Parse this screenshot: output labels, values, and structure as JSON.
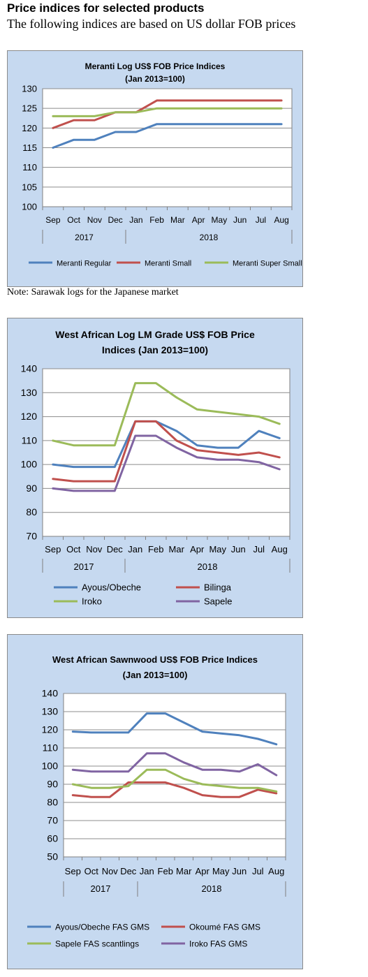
{
  "header": {
    "title": "Price indices for selected products",
    "subtitle": "The following indices are based on US dollar FOB prices"
  },
  "note": "Note: Sarawak logs for the Japanese market",
  "chart_data": [
    {
      "type": "line",
      "title_lines": [
        "Meranti Log US$ FOB Price Indices",
        "(Jan 2013=100)"
      ],
      "categories": [
        "Sep",
        "Oct",
        "Nov",
        "Dec",
        "Jan",
        "Feb",
        "Mar",
        "Apr",
        "May",
        "Jun",
        "Jul",
        "Aug"
      ],
      "year_groups": [
        {
          "label": "2017",
          "count": 4
        },
        {
          "label": "2018",
          "count": 8
        }
      ],
      "ylim": [
        100,
        130
      ],
      "yticks": [
        100,
        105,
        110,
        115,
        120,
        125,
        130
      ],
      "grid": true,
      "legend": "bottom",
      "legend_cols": 3,
      "series": [
        {
          "name": "Meranti Regular",
          "color": "#4f81bd",
          "values": [
            115,
            117,
            117,
            119,
            119,
            121,
            121,
            121,
            121,
            121,
            121,
            121
          ]
        },
        {
          "name": "Meranti Small",
          "color": "#c0504d",
          "values": [
            120,
            122,
            122,
            124,
            124,
            127,
            127,
            127,
            127,
            127,
            127,
            127
          ]
        },
        {
          "name": "Meranti Super Small",
          "color": "#9bbb59",
          "values": [
            123,
            123,
            123,
            124,
            124,
            125,
            125,
            125,
            125,
            125,
            125,
            125
          ]
        }
      ]
    },
    {
      "type": "line",
      "title_lines": [
        "West African Log LM Grade US$ FOB Price",
        "Indices (Jan 2013=100)"
      ],
      "categories": [
        "Sep",
        "Oct",
        "Nov",
        "Dec",
        "Jan",
        "Feb",
        "Mar",
        "Apr",
        "May",
        "Jun",
        "Jul",
        "Aug"
      ],
      "year_groups": [
        {
          "label": "2017",
          "count": 4
        },
        {
          "label": "2018",
          "count": 8
        }
      ],
      "ylim": [
        70,
        140
      ],
      "yticks": [
        70,
        80,
        90,
        100,
        110,
        120,
        130,
        140
      ],
      "grid": true,
      "legend": "bottom",
      "legend_cols": 2,
      "series": [
        {
          "name": "Ayous/Obeche",
          "color": "#4f81bd",
          "values": [
            100,
            99,
            99,
            99,
            118,
            118,
            114,
            108,
            107,
            107,
            114,
            111
          ]
        },
        {
          "name": "Bilinga",
          "color": "#c0504d",
          "values": [
            94,
            93,
            93,
            93,
            118,
            118,
            110,
            106,
            105,
            104,
            105,
            103
          ]
        },
        {
          "name": "Iroko",
          "color": "#9bbb59",
          "values": [
            110,
            108,
            108,
            108,
            134,
            134,
            128,
            123,
            122,
            121,
            120,
            117
          ]
        },
        {
          "name": "Sapele",
          "color": "#8064a2",
          "values": [
            90,
            89,
            89,
            89,
            112,
            112,
            107,
            103,
            102,
            102,
            101,
            98
          ]
        }
      ]
    },
    {
      "type": "line",
      "title_lines": [
        "West African Sawnwood US$ FOB Price Indices",
        "(Jan 2013=100)"
      ],
      "categories": [
        "Sep",
        "Oct",
        "Nov",
        "Dec",
        "Jan",
        "Feb",
        "Mar",
        "Apr",
        "May",
        "Jun",
        "Jul",
        "Aug"
      ],
      "year_groups": [
        {
          "label": "2017",
          "count": 4
        },
        {
          "label": "2018",
          "count": 8
        }
      ],
      "ylim": [
        50,
        140
      ],
      "yticks": [
        50,
        60,
        70,
        80,
        90,
        100,
        110,
        120,
        130,
        140
      ],
      "grid": true,
      "legend": "bottom",
      "legend_cols": 2,
      "series": [
        {
          "name": "Ayous/Obeche  FAS GMS",
          "color": "#4f81bd",
          "values": [
            119,
            118.5,
            118.5,
            118.5,
            129,
            129,
            124,
            119,
            118,
            117,
            115,
            112
          ]
        },
        {
          "name": "Okoumé  FAS GMS",
          "color": "#c0504d",
          "values": [
            84,
            83,
            83,
            91,
            91,
            91,
            88,
            84,
            83,
            83,
            87,
            85
          ]
        },
        {
          "name": "Sapele FAS scantlings",
          "color": "#9bbb59",
          "values": [
            90,
            88,
            88,
            89,
            98,
            98,
            93,
            90,
            89,
            88,
            88,
            86
          ]
        },
        {
          "name": "Iroko FAS GMS",
          "color": "#8064a2",
          "values": [
            98,
            97,
            97,
            97,
            107,
            107,
            102,
            98,
            98,
            97,
            101,
            95
          ]
        }
      ]
    }
  ]
}
